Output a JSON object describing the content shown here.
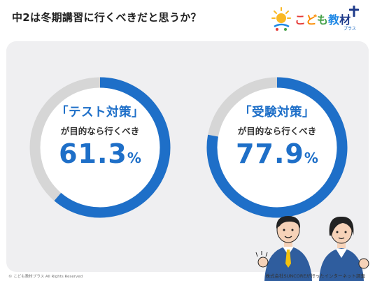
{
  "header": {
    "title": "中2は冬期講習に行くべきだと思うか？"
  },
  "logo": {
    "text_parts": [
      {
        "text": "こ",
        "color": "#e53935"
      },
      {
        "text": "ど",
        "color": "#fb8c00"
      },
      {
        "text": "も",
        "color": "#43a047"
      },
      {
        "text": "教",
        "color": "#1e88e5"
      },
      {
        "text": "材",
        "color": "#1e3a8a"
      }
    ],
    "sub": "プラス",
    "accent_sun": "#f9b825",
    "accent_plus": "#1e3a8a"
  },
  "chart_data": [
    {
      "type": "pie",
      "variant": "donut",
      "heading": "「テスト対策」",
      "subtitle": "が目的なら行くべき",
      "value": 61.3,
      "unit": "%",
      "value_label": "61.3",
      "range": [
        0,
        100
      ],
      "color": "#1e6fc8",
      "track_color": "#d6d6d6"
    },
    {
      "type": "pie",
      "variant": "donut",
      "heading": "「受験対策」",
      "subtitle": "が目的なら行くべき",
      "value": 77.9,
      "unit": "%",
      "value_label": "77.9",
      "range": [
        0,
        100
      ],
      "color": "#1e6fc8",
      "track_color": "#d6d6d6"
    }
  ],
  "footer": {
    "copyright": "© こども教材プラス All Rights Reserved",
    "source": "株式会社SUNCOREが行ったインターネット調査"
  },
  "colors": {
    "panel": "#efeff1",
    "accent": "#1e6fc8",
    "suit": "#2f5d9e"
  }
}
